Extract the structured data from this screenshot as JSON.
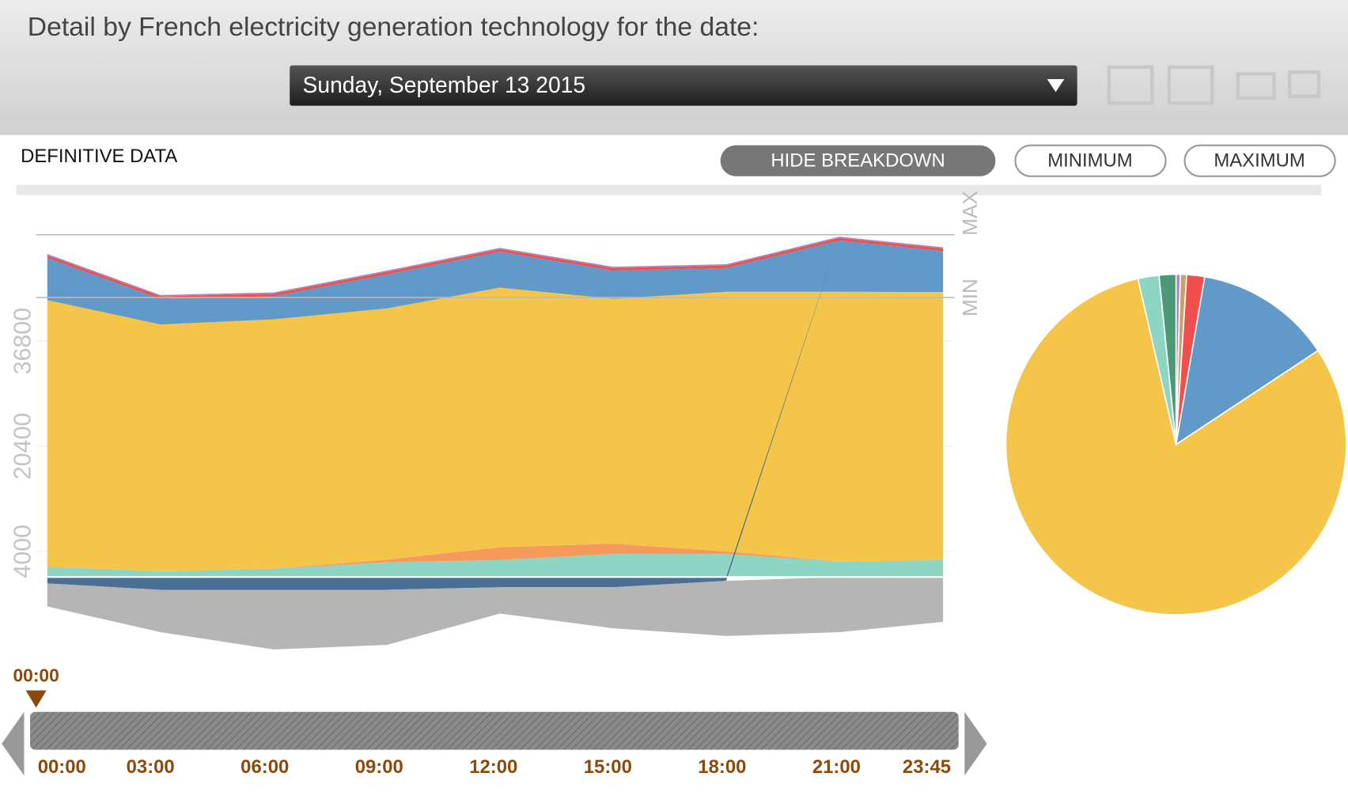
{
  "header": {
    "title": "Detail by French electricity generation technology for the date:",
    "date": "Sunday, September 13 2015"
  },
  "status": "DEFINITIVE DATA",
  "buttons": {
    "breakdown": "HIDE BREAKDOWN",
    "minimum": "MINIMUM",
    "maximum": "MAXIMUM"
  },
  "slider": {
    "current": "00:00"
  },
  "chart_data": [
    {
      "type": "area",
      "x": [
        "00:00",
        "03:00",
        "06:00",
        "09:00",
        "12:00",
        "15:00",
        "18:00",
        "21:00",
        "23:45"
      ],
      "series": [
        {
          "color": "#8fd5c3",
          "values": [
            1600,
            900,
            1300,
            2300,
            2650,
            3600,
            3600,
            2400,
            2650
          ]
        },
        {
          "color": "#f59a5a",
          "values": [
            0,
            0,
            0,
            400,
            2000,
            1600,
            400,
            0,
            0
          ]
        },
        {
          "color": "#f5c54a",
          "values": [
            41600,
            38500,
            38900,
            39200,
            40500,
            38200,
            40500,
            42100,
            41800
          ]
        },
        {
          "color": "#6199c9",
          "values": [
            6600,
            4000,
            3600,
            5300,
            5600,
            4400,
            3700,
            8000,
            6400
          ]
        },
        {
          "color": "#f14e4e",
          "values": [
            400,
            400,
            400,
            400,
            400,
            400,
            400,
            400,
            400
          ]
        },
        {
          "color": "#a787c0",
          "values": [
            200,
            200,
            200,
            200,
            200,
            200,
            200,
            200,
            200
          ]
        },
        {
          "color": "#4a6f94",
          "values": [
            -1000,
            -2000,
            -2000,
            -2000,
            -1600,
            -1600,
            -600,
            0,
            0
          ]
        },
        {
          "color": "#b5b5b5",
          "values": [
            -3600,
            -6600,
            -9300,
            -8600,
            -4100,
            -6400,
            -8600,
            -8600,
            -7000
          ]
        }
      ],
      "ylim": [
        -13000,
        53400
      ],
      "yticks": [
        4000,
        20400,
        36800
      ],
      "grid": true,
      "reference_lines": [
        {
          "label": "MAX",
          "value": 53400
        },
        {
          "label": "MIN",
          "value": 43600
        }
      ]
    },
    {
      "type": "pie",
      "values": [
        0.4,
        0.6,
        1.7,
        13,
        80.7,
        2,
        1.6
      ],
      "colors": [
        "#a787c0",
        "#c9a16a",
        "#f14e4e",
        "#6199c9",
        "#f5c54a",
        "#8fd5c3",
        "#4a9a78"
      ]
    }
  ]
}
